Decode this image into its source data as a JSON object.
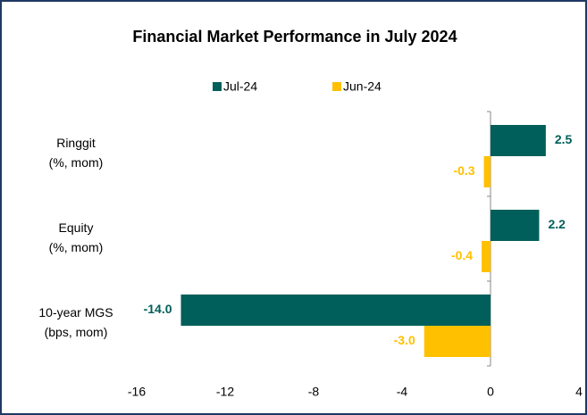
{
  "chart_data": {
    "type": "hbar",
    "title": "Financial Market Performance in July 2024",
    "categories": [
      [
        "Ringgit",
        "(%, mom)"
      ],
      [
        "Equity",
        "(%, mom)"
      ],
      [
        "10-year MGS",
        "(bps, mom)"
      ]
    ],
    "series": [
      {
        "name": "Jul-24",
        "color": "#005f5a",
        "values": [
          2.5,
          2.2,
          -14.0
        ],
        "value_labels": [
          "2.5",
          "2.2",
          "-14.0"
        ]
      },
      {
        "name": "Jun-24",
        "color": "#ffc000",
        "values": [
          -0.3,
          -0.4,
          -3.0
        ],
        "value_labels": [
          "-0.3",
          "-0.4",
          "-3.0"
        ]
      }
    ],
    "xlim": [
      -16,
      4
    ],
    "xticks": [
      -16,
      -12,
      -8,
      -4,
      0,
      4
    ]
  }
}
